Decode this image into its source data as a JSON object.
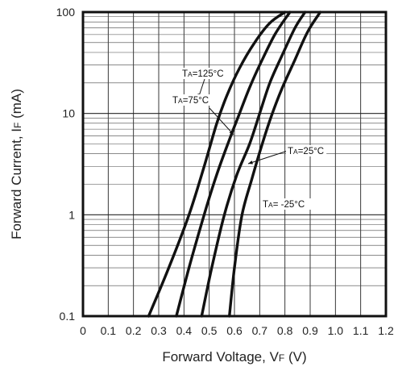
{
  "chart_data": {
    "type": "line",
    "title": "",
    "xlabel": "Forward Voltage, V",
    "xlabel_sub": "F",
    "xlabel_unit": " (V)",
    "ylabel": "Forward Current, I",
    "ylabel_sub": "F",
    "ylabel_unit": " (mA)",
    "xlim": [
      0,
      1.2
    ],
    "ylim": [
      0.1,
      100
    ],
    "y_scale": "log",
    "grid": true,
    "x_ticks": [
      "0",
      "0.1",
      "0.2",
      "0.3",
      "0.4",
      "0.5",
      "0.6",
      "0.7",
      "0.8",
      "0.9",
      "1.0",
      "1.1",
      "1.2"
    ],
    "y_ticks": [
      "0.1",
      "1",
      "10",
      "100"
    ],
    "series": [
      {
        "name": "TA=125°C",
        "x": [
          0.26,
          0.34,
          0.42,
          0.48,
          0.53,
          0.57,
          0.62,
          0.68,
          0.74,
          0.8
        ],
        "y": [
          0.1,
          0.3,
          1,
          3,
          8,
          15,
          28,
          50,
          78,
          100
        ]
      },
      {
        "name": "TA=75°C",
        "x": [
          0.37,
          0.42,
          0.48,
          0.53,
          0.58,
          0.62,
          0.66,
          0.7,
          0.76,
          0.82
        ],
        "y": [
          0.1,
          0.3,
          1,
          2.5,
          5.5,
          10,
          18,
          30,
          60,
          100
        ]
      },
      {
        "name": "TA=25°C",
        "x": [
          0.47,
          0.51,
          0.56,
          0.61,
          0.66,
          0.7,
          0.74,
          0.79,
          0.84,
          0.88
        ],
        "y": [
          0.1,
          0.3,
          1,
          2.5,
          5,
          10,
          20,
          38,
          70,
          100
        ]
      },
      {
        "name": "TA= -25°C",
        "x": [
          0.58,
          0.6,
          0.63,
          0.67,
          0.71,
          0.75,
          0.79,
          0.84,
          0.89,
          0.94
        ],
        "y": [
          0.1,
          0.3,
          1,
          2.3,
          5,
          10,
          18,
          34,
          64,
          100
        ]
      }
    ],
    "annotations": [
      {
        "label_main": "T",
        "label_sub": "A",
        "label_rest": "=125°C",
        "series": 0
      },
      {
        "label_main": "T",
        "label_sub": "A",
        "label_rest": "=75°C",
        "series": 1
      },
      {
        "label_main": "T",
        "label_sub": "A",
        "label_rest": "=25°C",
        "series": 2
      },
      {
        "label_main": "T",
        "label_sub": "A",
        "label_rest": "= -25°C",
        "series": 3
      }
    ]
  }
}
